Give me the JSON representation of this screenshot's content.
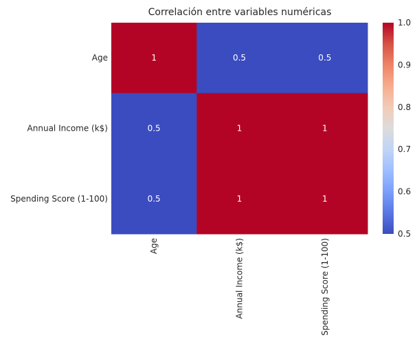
{
  "chart_data": {
    "type": "heatmap",
    "title": "Correlación entre variables numéricas",
    "xlabel": "",
    "ylabel": "",
    "x_categories": [
      "Age",
      "Annual Income (k$)",
      "Spending Score (1-100)"
    ],
    "y_categories": [
      "Age",
      "Annual Income (k$)",
      "Spending Score (1-100)"
    ],
    "values": [
      [
        1,
        0.5,
        0.5
      ],
      [
        0.5,
        1,
        1
      ],
      [
        0.5,
        1,
        1
      ]
    ],
    "value_labels": [
      [
        "1",
        "0.5",
        "0.5"
      ],
      [
        "0.5",
        "1",
        "1"
      ],
      [
        "0.5",
        "1",
        "1"
      ]
    ],
    "colormap": "coolwarm",
    "color_low": "#3b4cc0",
    "color_high": "#b40426",
    "colorbar": {
      "min": 0.5,
      "max": 1.0,
      "ticks": [
        "0.5",
        "0.6",
        "0.7",
        "0.8",
        "0.9",
        "1.0"
      ]
    },
    "annotations": true,
    "grid": false,
    "legend": "colorbar-right"
  }
}
